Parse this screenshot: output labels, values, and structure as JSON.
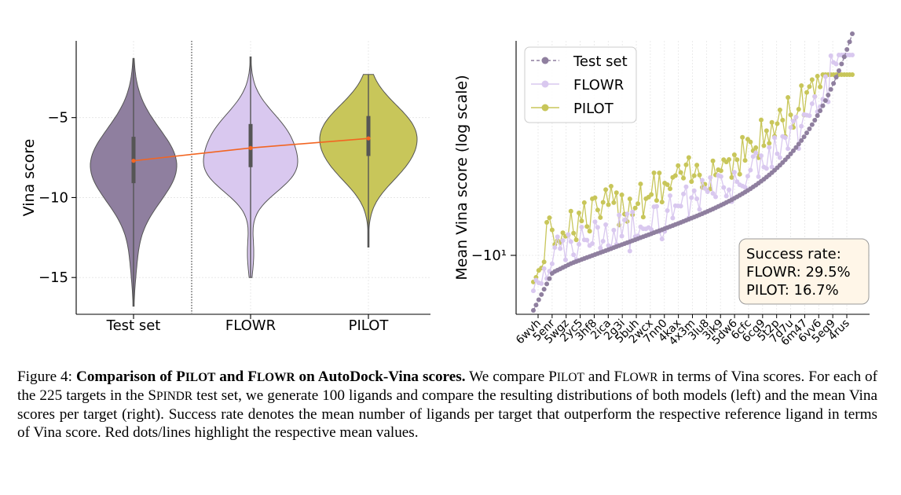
{
  "colors": {
    "test_set": "#8f7f9f",
    "flowr": "#d9c8ef",
    "pilot": "#c8c65a",
    "mean_line": "#f26522",
    "box_fill": "#fff6e8"
  },
  "chart_data": [
    {
      "type": "violin",
      "categories": [
        "Test set",
        "FLOWR",
        "PILOT"
      ],
      "ylabel": "Vina score",
      "ylim": [
        -17.3,
        -0.2
      ],
      "yticks": [
        -5,
        -10,
        -15
      ],
      "ytick_labels": [
        "−5",
        "−10",
        "−15"
      ],
      "means": [
        -7.7,
        -6.9,
        -6.3
      ],
      "quartiles": [
        [
          -9.1,
          -6.2
        ],
        [
          -8.1,
          -5.4
        ],
        [
          -7.4,
          -4.9
        ]
      ],
      "ranges": [
        [
          -16.8,
          -1.3
        ],
        [
          -15.0,
          -1.2
        ],
        [
          -13.1,
          -2.3
        ]
      ],
      "grid": true
    },
    {
      "type": "line",
      "ylabel": "Mean Vina score (log scale)",
      "yscale": "log",
      "ytick_label": "−10¹",
      "x_tick_labels": [
        "6wvh",
        "5enr",
        "5wgz",
        "2yc5",
        "3hf8",
        "2ica",
        "2g3i",
        "5buh",
        "2wcx",
        "7nn0",
        "4kax",
        "4x3m",
        "3lu8",
        "3ik9",
        "5dw6",
        "6cfc",
        "6cq9",
        "5t2p",
        "7d7u",
        "6m47",
        "6vv6",
        "5eq9",
        "4rus"
      ],
      "legend_position": "top-left",
      "series": [
        {
          "name": "Test set",
          "style": "dashed",
          "summary": {
            "start": -12.3,
            "end": -5.6
          }
        },
        {
          "name": "FLOWR",
          "style": "solid",
          "summary": {
            "start": -10.4,
            "end": -6.4
          }
        },
        {
          "name": "PILOT",
          "style": "solid",
          "summary": {
            "start": -9.8,
            "end": -5.4
          }
        }
      ],
      "annotation": {
        "title": "Success rate:",
        "flowr": "FLOWR: 29.5%",
        "pilot": "PILOT: 16.7%"
      },
      "grid": true
    }
  ],
  "caption": {
    "prefix": "Figure 4: ",
    "bold_1": "Comparison of ",
    "bold_pilot_P": "P",
    "bold_pilot_rest": "ILOT",
    "bold_2": " and ",
    "bold_flowr_F": "F",
    "bold_flowr_rest": "LOWR",
    "bold_3": " on AutoDock-Vina scores.",
    "t1": " We compare ",
    "pilot_P": "P",
    "pilot_rest": "ILOT",
    "t2": " and ",
    "flowr_F": "F",
    "flowr_rest": "LOWR",
    "t3": " in terms of Vina scores. For each of the 225 targets in the ",
    "spindr_S": "S",
    "spindr_rest": "PINDR",
    "t4": " test set, we generate 100 ligands and compare the resulting distributions of both models (left) and the mean Vina scores per target (right). Success rate denotes the mean number of ligands per target that outperform the respective reference ligand in terms of Vina score. Red dots/lines highlight the respective mean values."
  }
}
